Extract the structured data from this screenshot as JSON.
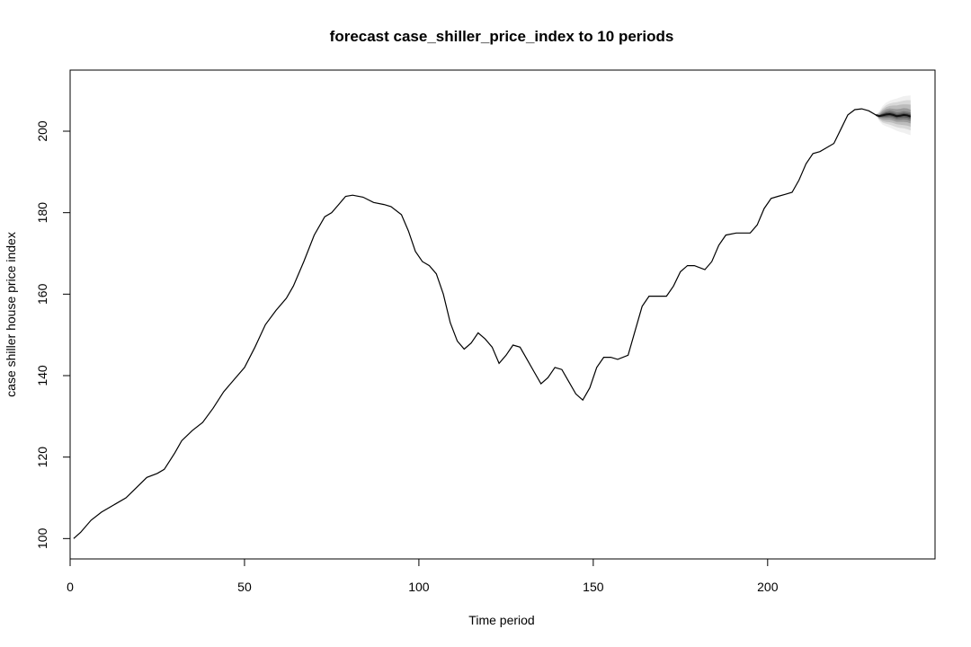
{
  "chart_data": {
    "type": "line",
    "title": "forecast case_shiller_price_index to 10 periods",
    "xlabel": "Time period",
    "ylabel": "case shiller house price index",
    "xlim": [
      0,
      248
    ],
    "ylim": [
      95,
      215
    ],
    "xticks": [
      0,
      50,
      100,
      150,
      200
    ],
    "yticks": [
      100,
      120,
      140,
      160,
      180,
      200
    ],
    "grid": false,
    "legend": "none",
    "series": [
      {
        "values": [
          [
            1,
            100.0
          ],
          [
            3,
            101.5
          ],
          [
            6,
            104.5
          ],
          [
            9,
            106.5
          ],
          [
            13,
            108.5
          ],
          [
            16,
            110.0
          ],
          [
            19,
            112.5
          ],
          [
            22,
            115.0
          ],
          [
            25,
            116.0
          ],
          [
            27,
            117.0
          ],
          [
            30,
            121.0
          ],
          [
            32,
            124.0
          ],
          [
            35,
            126.5
          ],
          [
            38,
            128.5
          ],
          [
            41,
            132.0
          ],
          [
            44,
            136.0
          ],
          [
            47,
            139.0
          ],
          [
            50,
            142.0
          ],
          [
            53,
            147.0
          ],
          [
            56,
            152.5
          ],
          [
            59,
            156.0
          ],
          [
            62,
            159.0
          ],
          [
            64,
            162.0
          ],
          [
            67,
            168.0
          ],
          [
            70,
            174.5
          ],
          [
            73,
            179.0
          ],
          [
            75,
            180.0
          ],
          [
            77,
            182.0
          ],
          [
            79,
            184.0
          ],
          [
            81,
            184.3
          ],
          [
            84,
            183.8
          ],
          [
            87,
            182.5
          ],
          [
            90,
            182.0
          ],
          [
            92,
            181.5
          ],
          [
            95,
            179.5
          ],
          [
            97,
            175.5
          ],
          [
            99,
            170.5
          ],
          [
            101,
            168.0
          ],
          [
            103,
            167.0
          ],
          [
            105,
            165.0
          ],
          [
            107,
            160.0
          ],
          [
            109,
            153.0
          ],
          [
            111,
            148.5
          ],
          [
            113,
            146.5
          ],
          [
            115,
            148.0
          ],
          [
            117,
            150.5
          ],
          [
            119,
            149.0
          ],
          [
            121,
            147.0
          ],
          [
            123,
            143.0
          ],
          [
            125,
            145.0
          ],
          [
            127,
            147.5
          ],
          [
            129,
            147.0
          ],
          [
            131,
            144.0
          ],
          [
            133,
            141.0
          ],
          [
            135,
            138.0
          ],
          [
            137,
            139.5
          ],
          [
            139,
            142.0
          ],
          [
            141,
            141.5
          ],
          [
            143,
            138.5
          ],
          [
            145,
            135.5
          ],
          [
            147,
            134.0
          ],
          [
            149,
            137.0
          ],
          [
            151,
            142.0
          ],
          [
            153,
            144.5
          ],
          [
            155,
            144.5
          ],
          [
            157,
            144.0
          ],
          [
            160,
            145.0
          ],
          [
            162,
            151.0
          ],
          [
            164,
            157.0
          ],
          [
            166,
            159.5
          ],
          [
            168,
            159.5
          ],
          [
            171,
            159.5
          ],
          [
            173,
            162.0
          ],
          [
            175,
            165.5
          ],
          [
            177,
            167.0
          ],
          [
            179,
            167.0
          ],
          [
            182,
            166.0
          ],
          [
            184,
            168.0
          ],
          [
            186,
            172.0
          ],
          [
            188,
            174.5
          ],
          [
            191,
            175.0
          ],
          [
            193,
            175.0
          ],
          [
            195,
            175.0
          ],
          [
            197,
            177.0
          ],
          [
            199,
            181.0
          ],
          [
            201,
            183.5
          ],
          [
            203,
            184.0
          ],
          [
            205,
            184.5
          ],
          [
            207,
            185.0
          ],
          [
            209,
            188.0
          ],
          [
            211,
            192.0
          ],
          [
            213,
            194.5
          ],
          [
            215,
            195.0
          ],
          [
            217,
            196.0
          ],
          [
            219,
            197.0
          ],
          [
            221,
            200.5
          ],
          [
            223,
            204.0
          ],
          [
            225,
            205.3
          ],
          [
            227,
            205.5
          ],
          [
            229,
            205.0
          ],
          [
            231,
            204.0
          ]
        ]
      }
    ],
    "forecast": {
      "x": [
        231,
        232,
        233,
        234,
        235,
        236,
        237,
        238,
        239,
        240,
        241
      ],
      "mean": [
        204.0,
        203.7,
        203.9,
        204.1,
        204.2,
        204.0,
        203.7,
        203.8,
        204.0,
        203.9,
        203.6
      ],
      "bands": [
        {
          "level": 99,
          "lower": [
            204.0,
            202.5,
            201.6,
            201.2,
            200.9,
            200.5,
            200.1,
            199.8,
            199.6,
            199.3,
            199.0
          ],
          "upper": [
            204.0,
            204.9,
            206.2,
            207.0,
            207.5,
            207.8,
            208.0,
            208.3,
            208.6,
            208.7,
            208.8
          ]
        },
        {
          "level": 95,
          "lower": [
            204.0,
            202.8,
            202.1,
            201.8,
            201.6,
            201.3,
            201.0,
            200.8,
            200.7,
            200.5,
            200.2
          ],
          "upper": [
            204.0,
            204.6,
            205.7,
            206.4,
            206.8,
            207.0,
            207.1,
            207.3,
            207.5,
            207.6,
            207.6
          ]
        },
        {
          "level": 90,
          "lower": [
            204.0,
            203.0,
            202.5,
            202.3,
            202.2,
            202.0,
            201.7,
            201.6,
            201.5,
            201.4,
            201.1
          ],
          "upper": [
            204.0,
            204.4,
            205.3,
            205.9,
            206.2,
            206.3,
            206.3,
            206.5,
            206.6,
            206.6,
            206.5
          ]
        },
        {
          "level": 80,
          "lower": [
            204.0,
            203.2,
            202.9,
            202.8,
            202.8,
            202.6,
            202.3,
            202.3,
            202.3,
            202.2,
            201.9
          ],
          "upper": [
            204.0,
            204.2,
            204.9,
            205.4,
            205.6,
            205.5,
            205.4,
            205.5,
            205.7,
            205.6,
            205.3
          ]
        },
        {
          "level": 70,
          "lower": [
            204.0,
            203.4,
            203.3,
            203.3,
            203.3,
            203.1,
            202.8,
            202.8,
            202.9,
            202.8,
            202.5
          ],
          "upper": [
            204.0,
            204.0,
            204.5,
            204.9,
            205.1,
            204.9,
            204.6,
            204.7,
            204.9,
            204.8,
            204.6
          ]
        },
        {
          "level": 50,
          "lower": [
            204.0,
            203.5,
            203.5,
            203.6,
            203.7,
            203.5,
            203.2,
            203.3,
            203.4,
            203.3,
            203.0
          ],
          "upper": [
            204.0,
            203.9,
            204.3,
            204.6,
            204.7,
            204.5,
            204.2,
            204.3,
            204.5,
            204.4,
            204.2
          ]
        }
      ]
    }
  }
}
